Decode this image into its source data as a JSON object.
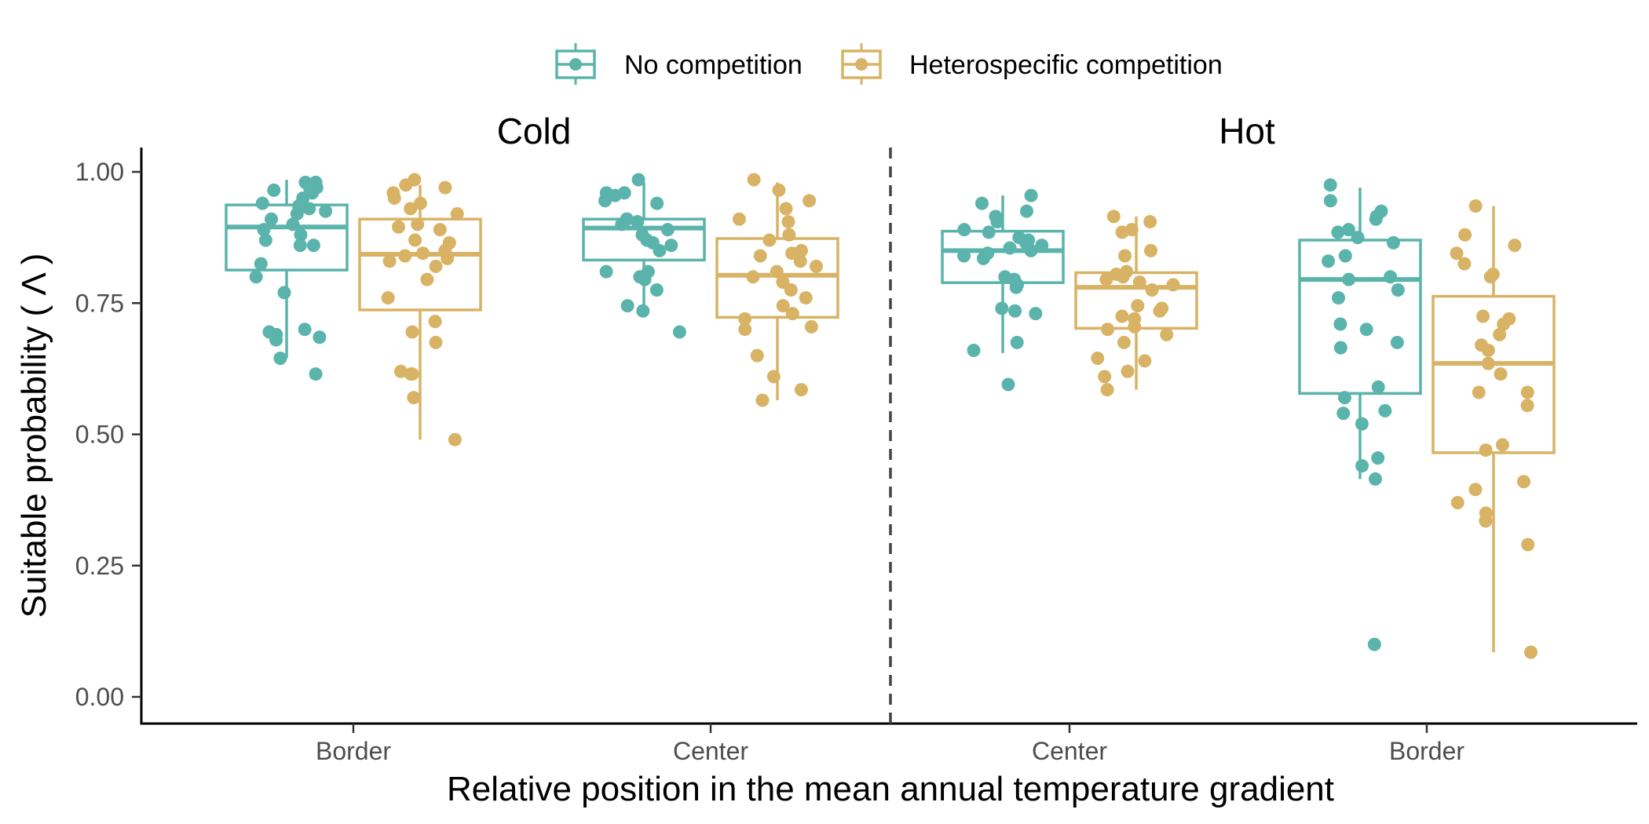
{
  "chart_data": {
    "type": "box",
    "title": "",
    "xlabel": "Relative position in the mean annual temperature gradient",
    "ylabel": "Suitable probability ( Λ )",
    "ylim": [
      -0.05,
      1.05
    ],
    "yticks": [
      0.0,
      0.25,
      0.5,
      0.75,
      1.0
    ],
    "ytick_labels": [
      "0.00",
      "0.25",
      "0.50",
      "0.75",
      "1.00"
    ],
    "categories": [
      "Border",
      "Center",
      "Center",
      "Border"
    ],
    "facets": [
      "Cold",
      "Hot"
    ],
    "facet_separator": "dashed vertical line between Center (Cold) and Center (Hot)",
    "legend": {
      "position": "top",
      "entries": [
        "No competition",
        "Heterospecific competition"
      ]
    },
    "grid": false,
    "colors": {
      "No competition": "#5ab4ac",
      "Heterospecific competition": "#d8b365"
    },
    "groups": [
      {
        "category": "Border",
        "facet": "Cold",
        "series": "No competition",
        "box": {
          "whisker_low": 0.645,
          "q1": 0.813,
          "median": 0.895,
          "q3": 0.937,
          "whisker_high": 0.985
        },
        "points": [
          0.935,
          0.91,
          0.92,
          0.925,
          0.88,
          0.86,
          0.825,
          0.97,
          0.95,
          0.96,
          0.98,
          0.965,
          0.97,
          0.94,
          0.9,
          0.87,
          0.89,
          0.93,
          0.98,
          0.86,
          0.8,
          0.77,
          0.7,
          0.68,
          0.695,
          0.69,
          0.685,
          0.615,
          0.645
        ]
      },
      {
        "category": "Border",
        "facet": "Cold",
        "series": "Heterospecific competition",
        "box": {
          "whisker_low": 0.49,
          "q1": 0.737,
          "median": 0.843,
          "q3": 0.91,
          "whisker_high": 0.975
        },
        "points": [
          0.985,
          0.97,
          0.95,
          0.96,
          0.975,
          0.93,
          0.94,
          0.92,
          0.9,
          0.89,
          0.895,
          0.87,
          0.865,
          0.85,
          0.84,
          0.845,
          0.835,
          0.82,
          0.83,
          0.795,
          0.76,
          0.715,
          0.695,
          0.675,
          0.62,
          0.615,
          0.615,
          0.57,
          0.49
        ]
      },
      {
        "category": "Center",
        "facet": "Cold",
        "series": "No competition",
        "box": {
          "whisker_low": 0.735,
          "q1": 0.832,
          "median": 0.893,
          "q3": 0.91,
          "whisker_high": 0.98
        },
        "points": [
          0.985,
          0.96,
          0.96,
          0.955,
          0.94,
          0.945,
          0.91,
          0.91,
          0.905,
          0.9,
          0.89,
          0.88,
          0.87,
          0.86,
          0.865,
          0.85,
          0.81,
          0.81,
          0.8,
          0.795,
          0.775,
          0.745,
          0.735,
          0.695
        ]
      },
      {
        "category": "Center",
        "facet": "Cold",
        "series": "Heterospecific competition",
        "box": {
          "whisker_low": 0.565,
          "q1": 0.723,
          "median": 0.803,
          "q3": 0.873,
          "whisker_high": 0.98
        },
        "points": [
          0.985,
          0.965,
          0.945,
          0.93,
          0.91,
          0.905,
          0.88,
          0.87,
          0.85,
          0.845,
          0.84,
          0.83,
          0.82,
          0.81,
          0.8,
          0.79,
          0.775,
          0.76,
          0.745,
          0.73,
          0.72,
          0.705,
          0.7,
          0.65,
          0.61,
          0.585,
          0.565
        ]
      },
      {
        "category": "Center",
        "facet": "Hot",
        "series": "No competition",
        "box": {
          "whisker_low": 0.655,
          "q1": 0.789,
          "median": 0.85,
          "q3": 0.887,
          "whisker_high": 0.955
        },
        "points": [
          0.955,
          0.94,
          0.925,
          0.915,
          0.905,
          0.89,
          0.885,
          0.875,
          0.87,
          0.865,
          0.86,
          0.855,
          0.85,
          0.845,
          0.84,
          0.835,
          0.8,
          0.795,
          0.785,
          0.78,
          0.74,
          0.735,
          0.73,
          0.675,
          0.66,
          0.595
        ]
      },
      {
        "category": "Center",
        "facet": "Hot",
        "series": "Heterospecific competition",
        "box": {
          "whisker_low": 0.585,
          "q1": 0.702,
          "median": 0.78,
          "q3": 0.808,
          "whisker_high": 0.915
        },
        "points": [
          0.915,
          0.905,
          0.89,
          0.885,
          0.85,
          0.84,
          0.81,
          0.805,
          0.8,
          0.795,
          0.79,
          0.785,
          0.775,
          0.745,
          0.74,
          0.735,
          0.725,
          0.72,
          0.705,
          0.7,
          0.69,
          0.675,
          0.645,
          0.64,
          0.62,
          0.61,
          0.585
        ]
      },
      {
        "category": "Border",
        "facet": "Hot",
        "series": "No competition",
        "box": {
          "whisker_low": 0.415,
          "q1": 0.578,
          "median": 0.795,
          "q3": 0.87,
          "whisker_high": 0.97
        },
        "points": [
          0.975,
          0.945,
          0.925,
          0.915,
          0.91,
          0.89,
          0.885,
          0.875,
          0.865,
          0.84,
          0.83,
          0.8,
          0.795,
          0.775,
          0.76,
          0.71,
          0.7,
          0.675,
          0.665,
          0.59,
          0.57,
          0.545,
          0.54,
          0.52,
          0.455,
          0.44,
          0.415,
          0.1
        ]
      },
      {
        "category": "Border",
        "facet": "Hot",
        "series": "Heterospecific competition",
        "box": {
          "whisker_low": 0.085,
          "q1": 0.465,
          "median": 0.635,
          "q3": 0.763,
          "whisker_high": 0.935
        },
        "points": [
          0.935,
          0.88,
          0.86,
          0.845,
          0.825,
          0.805,
          0.8,
          0.725,
          0.72,
          0.71,
          0.69,
          0.67,
          0.66,
          0.635,
          0.615,
          0.58,
          0.58,
          0.555,
          0.48,
          0.47,
          0.41,
          0.395,
          0.37,
          0.35,
          0.335,
          0.29,
          0.085
        ]
      }
    ]
  }
}
